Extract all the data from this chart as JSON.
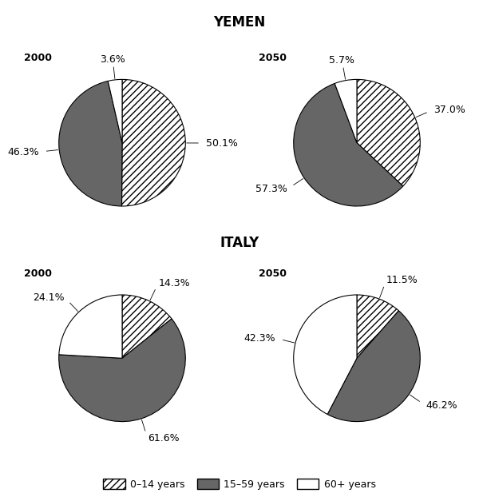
{
  "title_yemen": "YEMEN",
  "title_italy": "ITALY",
  "charts": [
    {
      "label": "2000",
      "country": "Yemen",
      "values": [
        50.1,
        46.3,
        3.6
      ],
      "pct_labels": [
        "50.1%",
        "46.3%",
        "3.6%"
      ],
      "startangle": 90
    },
    {
      "label": "2050",
      "country": "Yemen",
      "values": [
        37.0,
        57.3,
        5.7
      ],
      "pct_labels": [
        "37.0%",
        "57.3%",
        "5.7%"
      ],
      "startangle": 90
    },
    {
      "label": "2000",
      "country": "Italy",
      "values": [
        14.3,
        61.6,
        24.1
      ],
      "pct_labels": [
        "14.3%",
        "61.6%",
        "24.1%"
      ],
      "startangle": 90
    },
    {
      "label": "2050",
      "country": "Italy",
      "values": [
        11.5,
        46.2,
        42.3
      ],
      "pct_labels": [
        "11.5%",
        "46.2%",
        "42.3%"
      ],
      "startangle": 90
    }
  ],
  "categories": [
    "0–14 years",
    "15–59 years",
    "60+ years"
  ],
  "slice_facecolors": [
    "white",
    "#666666",
    "white"
  ],
  "slice_hatches": [
    "////",
    "",
    ""
  ],
  "background_color": "white",
  "title_fontsize": 12,
  "label_fontsize": 9,
  "year_fontsize": 9,
  "legend_fontsize": 9
}
